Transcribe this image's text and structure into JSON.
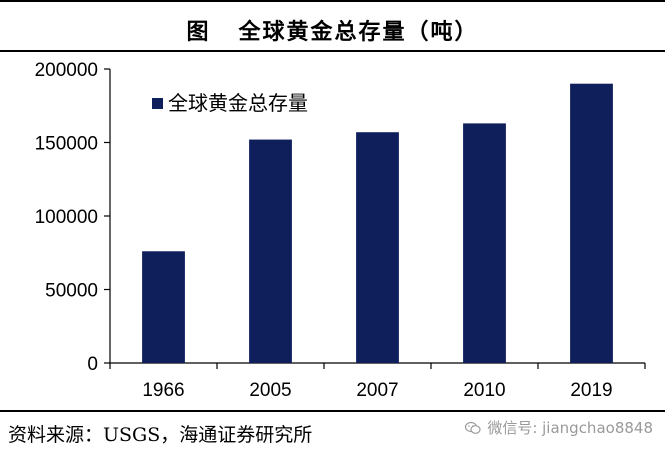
{
  "header": {
    "prefix": "图",
    "title": "全球黄金总存量（吨）"
  },
  "source": {
    "text": "资料来源：USGS，海通证券研究所",
    "watermark": "微信号: jiangchao8848",
    "watermark_icon": "wechat-icon"
  },
  "chart_data": {
    "type": "bar",
    "title": "全球黄金总存量（吨）",
    "categories": [
      "1966",
      "2005",
      "2007",
      "2010",
      "2019"
    ],
    "series": [
      {
        "name": "全球黄金总存量",
        "values": [
          76000,
          152000,
          157000,
          163000,
          190000
        ],
        "color": "#0f1f5c"
      }
    ],
    "ylim": [
      0,
      200000
    ],
    "yticks": [
      0,
      50000,
      100000,
      150000,
      200000
    ],
    "grid": false,
    "legend_position": "top-left"
  }
}
